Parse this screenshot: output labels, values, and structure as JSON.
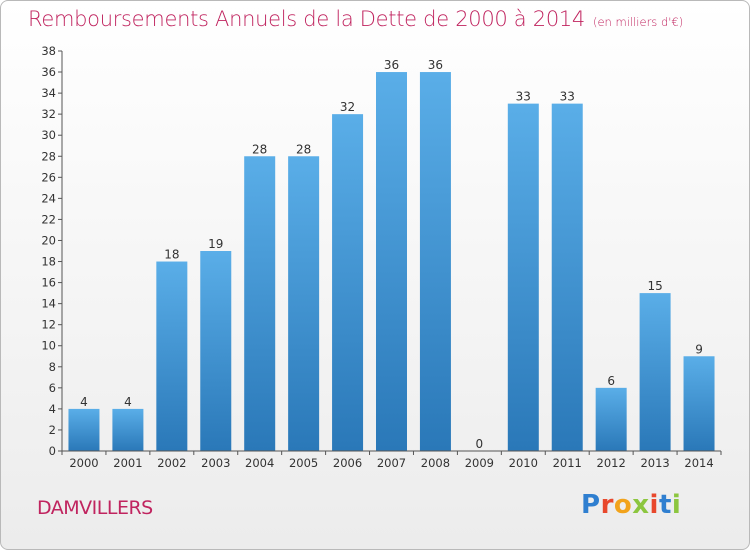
{
  "header": {
    "title": "Remboursements Annuels de la Dette de 2000 à 2014",
    "unit": "(en milliers d'€)"
  },
  "footer": {
    "town": "DAMVILLERS",
    "logo_letters": [
      "P",
      "r",
      "o",
      "x",
      "i",
      "t",
      "i"
    ],
    "logo_colors": [
      "#2f7fd0",
      "#e8482c",
      "#f2a31b",
      "#8cc63f",
      "#e8482c",
      "#2f7fd0",
      "#8cc63f"
    ]
  },
  "chart_data": {
    "type": "bar",
    "title": "Remboursements Annuels de la Dette de 2000 à 2014",
    "categories": [
      "2000",
      "2001",
      "2002",
      "2003",
      "2004",
      "2005",
      "2006",
      "2007",
      "2008",
      "2009",
      "2010",
      "2011",
      "2012",
      "2013",
      "2014"
    ],
    "values": [
      4,
      4,
      18,
      19,
      28,
      28,
      32,
      36,
      36,
      0,
      33,
      33,
      6,
      15,
      9
    ],
    "ylim": [
      0,
      38
    ],
    "yticks": [
      0,
      2,
      4,
      6,
      8,
      10,
      12,
      14,
      16,
      18,
      20,
      22,
      24,
      26,
      28,
      30,
      32,
      34,
      36,
      38
    ],
    "grid": false,
    "bar_color_top": "#5aaee8",
    "bar_color_bottom": "#2a78b8"
  }
}
